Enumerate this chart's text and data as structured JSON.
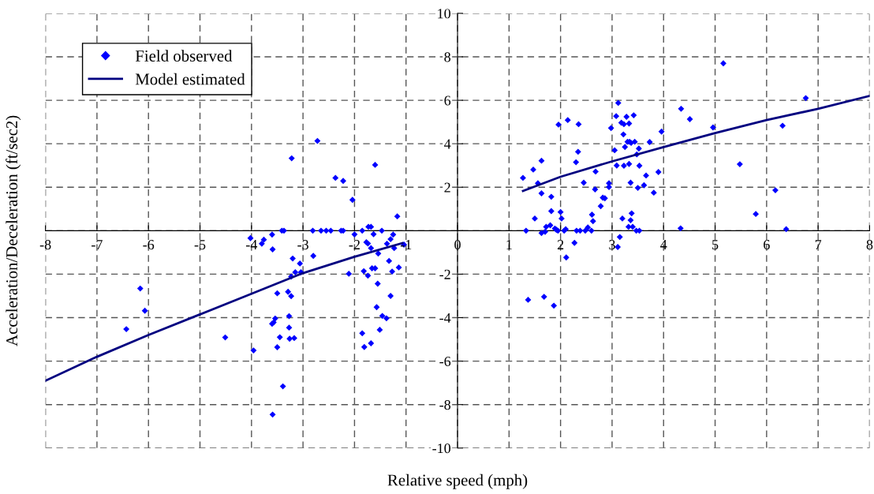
{
  "chart_data": {
    "type": "scatter",
    "xlabel": "Relative speed (mph)",
    "ylabel": "Acceleration/Deceleration (ft/sec2)",
    "xlim": [
      -8,
      8
    ],
    "xticks": [
      -8,
      -7,
      -6,
      -5,
      -4,
      -3,
      -2,
      -1,
      0,
      1,
      2,
      3,
      4,
      5,
      6,
      7,
      8
    ],
    "ylim": [
      -10,
      10
    ],
    "yticks": [
      -10,
      -8,
      -6,
      -4,
      -2,
      {
        "value": 0,
        "label": null
      },
      2,
      4,
      6,
      8,
      10
    ],
    "grid": true,
    "legend": "top left",
    "series": [
      {
        "name": "Field observed",
        "marker": "diamond",
        "color": "#0000ff",
        "x": [
          -2.72,
          -3.22,
          -1.6,
          -2.37,
          -2.22,
          -2.04,
          -1.17,
          -3.41,
          -3.37,
          -2.81,
          -2.65,
          -2.55,
          -2.46,
          -2.26,
          -2.22,
          -1.85,
          -1.47,
          -1.73,
          -1.68,
          -4.02,
          -3.76,
          -3.8,
          -3.6,
          -3.59,
          -2.0,
          -1.63,
          -1.25,
          -1.3,
          -1.37,
          -1.77,
          -1.74,
          -1.68,
          -1.23,
          -1.04,
          -1.54,
          -1.33,
          -3.2,
          -2.8,
          -3.06,
          -3.15,
          -3.04,
          -3.23,
          -2.11,
          -1.82,
          -1.74,
          -1.66,
          -1.6,
          -1.27,
          -1.14,
          -1.55,
          -1.3,
          -6.16,
          -6.07,
          -6.43,
          -4.51,
          -3.96,
          -3.5,
          -3.29,
          -3.23,
          -3.27,
          -3.54,
          -3.57,
          -3.6,
          -3.27,
          -3.45,
          -3.26,
          -3.17,
          -3.5,
          -3.39,
          -3.59,
          -1.57,
          -1.46,
          -1.38,
          -1.85,
          -1.51,
          -1.68,
          -1.81,
          5.16,
          3.12,
          4.34,
          3.08,
          3.28,
          3.42,
          4.51,
          2.14,
          1.96,
          2.35,
          3.18,
          3.23,
          3.33,
          2.98,
          4.96,
          3.96,
          3.22,
          3.3,
          3.34,
          3.37,
          3.44,
          3.73,
          3.25,
          3.52,
          3.05,
          2.34,
          3.48,
          2.3,
          1.63,
          1.47,
          1.27,
          3.09,
          3.23,
          3.33,
          3.53,
          2.68,
          3.9,
          3.66,
          1.56,
          2.45,
          2.94,
          3.36,
          2.94,
          3.62,
          3.5,
          2.67,
          3.81,
          1.63,
          1.82,
          2.82,
          2.86,
          2.78,
          1.82,
          2.0,
          2.61,
          3.38,
          1.5,
          2.02,
          3.2,
          3.36,
          2.63,
          1.8,
          1.72,
          3.32,
          3.4,
          2.53,
          1.89,
          2.1,
          1.33,
          1.95,
          2.07,
          2.31,
          2.38,
          2.48,
          2.6,
          3.47,
          3.53,
          1.63,
          1.7,
          1.92,
          3.15,
          2.27,
          3.11,
          2.11,
          1.37,
          1.68,
          1.87,
          4.33,
          6.76,
          6.31,
          5.48,
          6.17,
          5.79,
          6.38
        ],
        "values": [
          4.13,
          3.33,
          3.03,
          2.43,
          2.29,
          1.42,
          0.66,
          0,
          0,
          0,
          0,
          0,
          0,
          0,
          0,
          0,
          0,
          0.18,
          0.18,
          -0.34,
          -0.41,
          -0.6,
          -0.18,
          -0.86,
          -0.17,
          -0.16,
          -0.18,
          -0.39,
          -0.6,
          -0.53,
          -0.59,
          -0.8,
          -0.8,
          -0.64,
          -1.05,
          -1.39,
          -1.28,
          -1.16,
          -1.51,
          -1.91,
          -1.91,
          -2.11,
          -1.98,
          -1.86,
          -2.07,
          -1.73,
          -1.73,
          -1.88,
          -1.69,
          -2.44,
          -3.0,
          -2.66,
          -3.68,
          -4.53,
          -4.91,
          -5.51,
          -2.88,
          -2.81,
          -3.01,
          -3.93,
          -4.04,
          -4.22,
          -4.28,
          -4.46,
          -4.9,
          -4.97,
          -4.94,
          -5.36,
          -7.16,
          -8.46,
          -3.52,
          -3.92,
          -4.03,
          -4.72,
          -4.56,
          -5.18,
          -5.35,
          7.7,
          5.88,
          5.61,
          5.27,
          5.24,
          5.31,
          5.13,
          5.09,
          4.88,
          4.9,
          4.97,
          4.9,
          4.93,
          4.72,
          4.75,
          4.56,
          4.43,
          4.09,
          4.09,
          4.04,
          4.09,
          4.08,
          3.85,
          3.78,
          3.7,
          3.63,
          3.51,
          3.15,
          3.22,
          2.81,
          2.43,
          3.0,
          2.99,
          3.07,
          2.99,
          2.72,
          2.7,
          2.54,
          2.18,
          2.21,
          2.18,
          2.21,
          2.01,
          2.09,
          1.97,
          1.9,
          1.75,
          1.72,
          1.56,
          1.52,
          1.49,
          1.13,
          0.9,
          0.86,
          0.74,
          0.8,
          0.56,
          0.56,
          0.56,
          0.48,
          0.44,
          0.25,
          0.18,
          0.18,
          0.18,
          0.15,
          0.1,
          0.07,
          0,
          0,
          0,
          0,
          0,
          0,
          0,
          0,
          0,
          -0.11,
          -0.05,
          0.04,
          -0.29,
          -0.56,
          -0.75,
          -1.23,
          -3.18,
          -3.04,
          -3.45,
          0.11,
          6.1,
          4.83,
          3.06,
          1.86,
          0.77,
          0.07
        ]
      },
      {
        "name": "Model estimated",
        "type": "line",
        "marker": "none",
        "line_style": "solid",
        "color": "#000080",
        "x": [
          -8,
          -7,
          -6,
          -5,
          -4,
          -3,
          -2,
          -1.07,
          0,
          1.27,
          2,
          3,
          4,
          5,
          6,
          7,
          8
        ],
        "values": [
          -6.9,
          -5.8,
          -4.8,
          -3.85,
          -2.9,
          -1.95,
          -1.2,
          -0.57,
          null,
          1.83,
          2.48,
          3.19,
          3.85,
          4.49,
          5.09,
          5.61,
          6.2
        ]
      }
    ]
  }
}
